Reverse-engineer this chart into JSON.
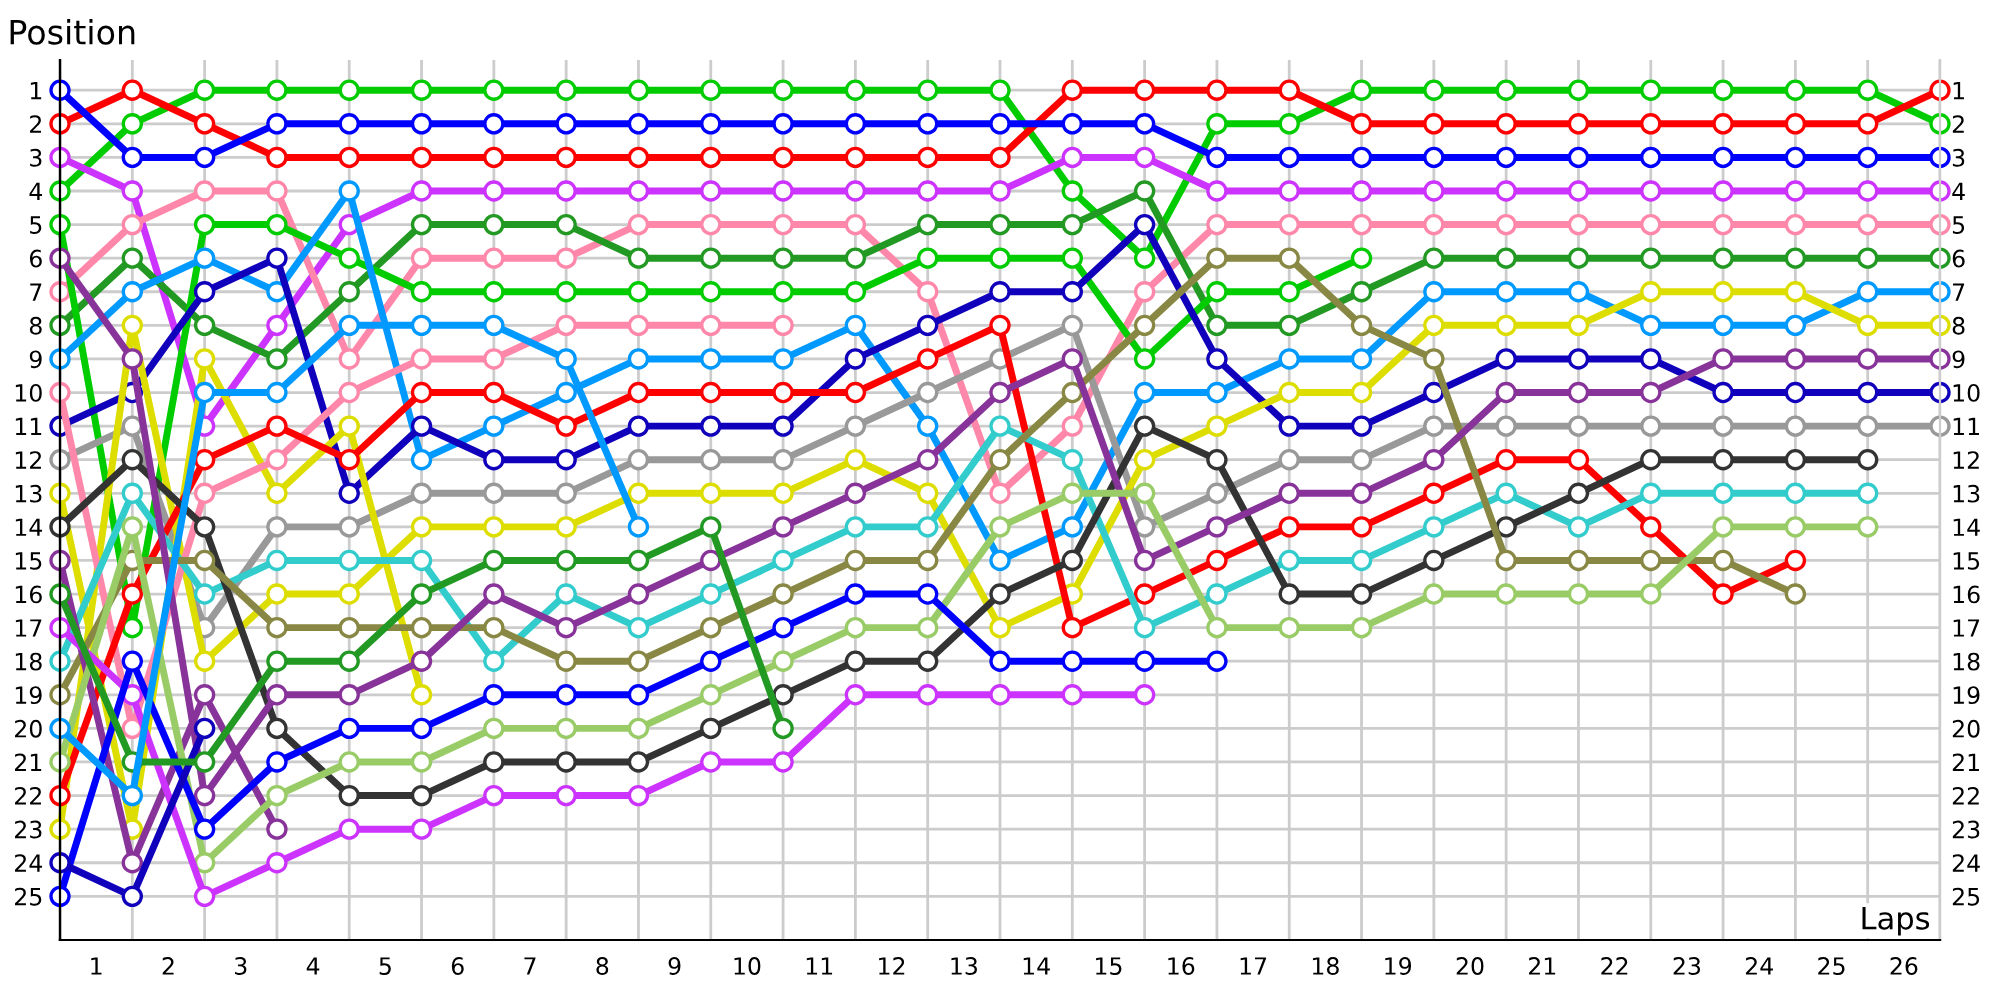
{
  "chart_data": {
    "type": "line",
    "xlabel": "Laps",
    "ylabel": "Position",
    "x": [
      0,
      1,
      2,
      3,
      4,
      5,
      6,
      7,
      8,
      9,
      10,
      11,
      12,
      13,
      14,
      15,
      16,
      17,
      18,
      19,
      20,
      21,
      22,
      23,
      24,
      25,
      26
    ],
    "xlim": [
      0,
      26
    ],
    "ylim": [
      26.3,
      0.1
    ],
    "y2lim": [
      26.3,
      0.1
    ],
    "xticks": [
      {
        "value": 0,
        "label": null
      },
      {
        "value": 1,
        "label": null
      },
      {
        "value": 2,
        "label": null
      },
      {
        "value": 3,
        "label": null
      },
      {
        "value": 4,
        "label": null
      },
      {
        "value": 5,
        "label": null
      },
      {
        "value": 6,
        "label": null
      },
      {
        "value": 7,
        "label": null
      },
      {
        "value": 8,
        "label": null
      },
      {
        "value": 9,
        "label": null
      },
      {
        "value": 10,
        "label": null
      },
      {
        "value": 11,
        "label": null
      },
      {
        "value": 12,
        "label": null
      },
      {
        "value": 13,
        "label": null
      },
      {
        "value": 14,
        "label": null
      },
      {
        "value": 15,
        "label": null
      },
      {
        "value": 16,
        "label": null
      },
      {
        "value": 17,
        "label": null
      },
      {
        "value": 18,
        "label": null
      },
      {
        "value": 19,
        "label": null
      },
      {
        "value": 20,
        "label": null
      },
      {
        "value": 21,
        "label": null
      },
      {
        "value": 22,
        "label": null
      },
      {
        "value": 23,
        "label": null
      },
      {
        "value": 24,
        "label": null
      },
      {
        "value": 25,
        "label": null
      },
      {
        "value": 26,
        "label": null
      },
      {
        "value": 0.5,
        "label": "1"
      },
      {
        "value": 1.5,
        "label": "2"
      },
      {
        "value": 2.5,
        "label": "3"
      },
      {
        "value": 3.5,
        "label": "4"
      },
      {
        "value": 4.5,
        "label": "5"
      },
      {
        "value": 5.5,
        "label": "6"
      },
      {
        "value": 6.5,
        "label": "7"
      },
      {
        "value": 7.5,
        "label": "8"
      },
      {
        "value": 8.5,
        "label": "9"
      },
      {
        "value": 9.5,
        "label": "10"
      },
      {
        "value": 10.5,
        "label": "11"
      },
      {
        "value": 11.5,
        "label": "12"
      },
      {
        "value": 12.5,
        "label": "13"
      },
      {
        "value": 13.5,
        "label": "14"
      },
      {
        "value": 14.5,
        "label": "15"
      },
      {
        "value": 15.5,
        "label": "16"
      },
      {
        "value": 16.5,
        "label": "17"
      },
      {
        "value": 17.5,
        "label": "18"
      },
      {
        "value": 18.5,
        "label": "19"
      },
      {
        "value": 19.5,
        "label": "20"
      },
      {
        "value": 20.5,
        "label": "21"
      },
      {
        "value": 21.5,
        "label": "22"
      },
      {
        "value": 22.5,
        "label": "23"
      },
      {
        "value": 23.5,
        "label": "24"
      },
      {
        "value": 24.5,
        "label": "25"
      },
      {
        "value": 25.5,
        "label": "26"
      }
    ],
    "yticks": [
      1,
      2,
      3,
      4,
      5,
      6,
      7,
      8,
      9,
      10,
      11,
      12,
      13,
      14,
      15,
      16,
      17,
      18,
      19,
      20,
      21,
      22,
      23,
      24,
      25
    ],
    "y2ticks": [
      1,
      2,
      3,
      4,
      5,
      6,
      7,
      8,
      9,
      10,
      11,
      12,
      13,
      14,
      15,
      16,
      17,
      18,
      19,
      20,
      21,
      22,
      23,
      24,
      25
    ],
    "grid": true,
    "marker": "circle",
    "line_style": "solid",
    "series": [
      {
        "color": "#00cc00",
        "values": [
          4,
          2,
          1,
          1,
          1,
          1,
          1,
          1,
          1,
          1,
          1,
          1,
          1,
          1,
          4,
          6,
          2,
          2,
          1,
          1,
          1,
          1,
          1,
          1,
          1,
          1,
          2
        ]
      },
      {
        "color": "#ff0000",
        "values": [
          2,
          1,
          2,
          3,
          3,
          3,
          3,
          3,
          3,
          3,
          3,
          3,
          3,
          3,
          1,
          1,
          1,
          1,
          2,
          2,
          2,
          2,
          2,
          2,
          2,
          2,
          1
        ]
      },
      {
        "color": "#0000ff",
        "values": [
          1,
          3,
          3,
          2,
          2,
          2,
          2,
          2,
          2,
          2,
          2,
          2,
          2,
          2,
          2,
          2,
          3,
          3,
          3,
          3,
          3,
          3,
          3,
          3,
          3,
          3,
          3
        ]
      },
      {
        "color": "#cc33ff",
        "values": [
          3,
          4,
          11,
          8,
          5,
          4,
          4,
          4,
          4,
          4,
          4,
          4,
          4,
          4,
          3,
          3,
          4,
          4,
          4,
          4,
          4,
          4,
          4,
          4,
          4,
          4,
          4
        ]
      },
      {
        "color": "#ff88aa",
        "values": [
          7,
          5,
          4,
          4,
          9,
          6,
          6,
          6,
          5,
          5,
          5,
          5,
          7,
          13,
          11,
          7,
          5,
          5,
          5,
          5,
          5,
          5,
          5,
          5,
          5,
          5,
          5
        ]
      },
      {
        "color": "#229922",
        "values": [
          8,
          6,
          8,
          9,
          7,
          5,
          5,
          5,
          6,
          6,
          6,
          6,
          5,
          5,
          5,
          4,
          8,
          8,
          7,
          6,
          6,
          6,
          6,
          6,
          6,
          6,
          6
        ]
      },
      {
        "color": "#00cc00",
        "values": [
          5,
          17,
          5,
          5,
          6,
          7,
          7,
          7,
          7,
          7,
          7,
          7,
          6,
          6,
          6,
          9,
          7,
          7,
          6,
          null,
          null,
          null,
          null,
          null,
          null,
          null,
          null
        ]
      },
      {
        "color": "#0099ff",
        "values": [
          9,
          7,
          6,
          7,
          4,
          12,
          11,
          10,
          9,
          9,
          9,
          8,
          11,
          15,
          14,
          10,
          10,
          9,
          9,
          7,
          7,
          7,
          8,
          8,
          8,
          7,
          7
        ]
      },
      {
        "color": "#1100bb",
        "values": [
          11,
          10,
          7,
          6,
          13,
          11,
          12,
          12,
          11,
          11,
          11,
          9,
          8,
          7,
          7,
          5,
          9,
          11,
          11,
          10,
          9,
          9,
          9,
          10,
          10,
          10,
          10
        ]
      },
      {
        "color": "#999999",
        "values": [
          12,
          11,
          17,
          14,
          14,
          13,
          13,
          13,
          12,
          12,
          12,
          11,
          10,
          9,
          8,
          14,
          13,
          12,
          12,
          11,
          11,
          11,
          11,
          11,
          11,
          11,
          11
        ]
      },
      {
        "color": "#dddd00",
        "values": [
          23,
          8,
          18,
          16,
          16,
          14,
          14,
          14,
          13,
          13,
          13,
          12,
          13,
          17,
          16,
          12,
          11,
          10,
          10,
          8,
          8,
          8,
          7,
          7,
          7,
          8,
          8
        ]
      },
      {
        "color": "#dddd00",
        "values": [
          13,
          23,
          9,
          13,
          11,
          19,
          null,
          null,
          null,
          null,
          null,
          null,
          null,
          null,
          null,
          null,
          null,
          null,
          null,
          null,
          null,
          null,
          null,
          null,
          null,
          null,
          null
        ]
      },
      {
        "color": "#ff88aa",
        "values": [
          10,
          20,
          13,
          12,
          10,
          9,
          9,
          8,
          8,
          8,
          8,
          null,
          null,
          null,
          null,
          null,
          null,
          null,
          null,
          null,
          null,
          null,
          null,
          null,
          null,
          null,
          null
        ]
      },
      {
        "color": "#ff0000",
        "values": [
          22,
          16,
          12,
          11,
          12,
          10,
          10,
          11,
          10,
          10,
          10,
          10,
          9,
          8,
          17,
          16,
          15,
          14,
          14,
          13,
          12,
          12,
          14,
          16,
          15,
          null,
          null
        ]
      },
      {
        "color": "#33cccc",
        "values": [
          18,
          13,
          16,
          15,
          15,
          15,
          18,
          16,
          17,
          16,
          15,
          14,
          14,
          11,
          12,
          17,
          16,
          15,
          15,
          14,
          13,
          14,
          13,
          13,
          13,
          13,
          null
        ]
      },
      {
        "color": "#333333",
        "values": [
          14,
          12,
          14,
          20,
          22,
          22,
          21,
          21,
          21,
          20,
          19,
          18,
          18,
          16,
          15,
          11,
          12,
          16,
          16,
          15,
          14,
          13,
          12,
          12,
          12,
          12,
          null
        ]
      },
      {
        "color": "#888844",
        "values": [
          19,
          15,
          15,
          17,
          17,
          17,
          17,
          18,
          18,
          17,
          16,
          15,
          15,
          12,
          10,
          8,
          6,
          6,
          8,
          9,
          15,
          15,
          15,
          15,
          16,
          null,
          null
        ]
      },
      {
        "color": "#883399",
        "values": [
          6,
          9,
          22,
          19,
          19,
          18,
          16,
          17,
          16,
          15,
          14,
          13,
          12,
          10,
          9,
          15,
          14,
          13,
          13,
          12,
          10,
          10,
          10,
          9,
          9,
          9,
          9
        ]
      },
      {
        "color": "#883399",
        "values": [
          15,
          24,
          19,
          23,
          null,
          null,
          null,
          null,
          null,
          null,
          null,
          null,
          null,
          null,
          null,
          null,
          null,
          null,
          null,
          null,
          null,
          null,
          null,
          null,
          null,
          null,
          null
        ]
      },
      {
        "color": "#99cc66",
        "values": [
          21,
          14,
          24,
          22,
          21,
          21,
          20,
          20,
          20,
          19,
          18,
          17,
          17,
          14,
          13,
          13,
          17,
          17,
          17,
          16,
          16,
          16,
          16,
          14,
          14,
          14,
          null
        ]
      },
      {
        "color": "#cc33ff",
        "values": [
          17,
          19,
          25,
          24,
          23,
          23,
          22,
          22,
          22,
          21,
          21,
          19,
          19,
          19,
          19,
          19,
          null,
          null,
          null,
          null,
          null,
          null,
          null,
          null,
          null,
          null,
          null
        ]
      },
      {
        "color": "#0000ff",
        "values": [
          25,
          18,
          23,
          21,
          20,
          20,
          19,
          19,
          19,
          18,
          17,
          16,
          16,
          18,
          18,
          18,
          18,
          null,
          null,
          null,
          null,
          null,
          null,
          null,
          null,
          null,
          null
        ]
      },
      {
        "color": "#1100bb",
        "values": [
          24,
          25,
          20,
          null,
          null,
          null,
          null,
          null,
          null,
          null,
          null,
          null,
          null,
          null,
          null,
          null,
          null,
          null,
          null,
          null,
          null,
          null,
          null,
          null,
          null,
          null,
          null
        ]
      },
      {
        "color": "#229922",
        "values": [
          16,
          21,
          21,
          18,
          18,
          16,
          15,
          15,
          15,
          14,
          20,
          null,
          null,
          null,
          null,
          null,
          null,
          null,
          null,
          null,
          null,
          null,
          null,
          null,
          null,
          null,
          null
        ]
      },
      {
        "color": "#0099ff",
        "values": [
          20,
          22,
          10,
          10,
          8,
          8,
          8,
          9,
          14,
          null,
          null,
          null,
          null,
          null,
          null,
          null,
          null,
          null,
          null,
          null,
          null,
          null,
          null,
          null,
          null,
          null,
          null
        ]
      }
    ]
  }
}
